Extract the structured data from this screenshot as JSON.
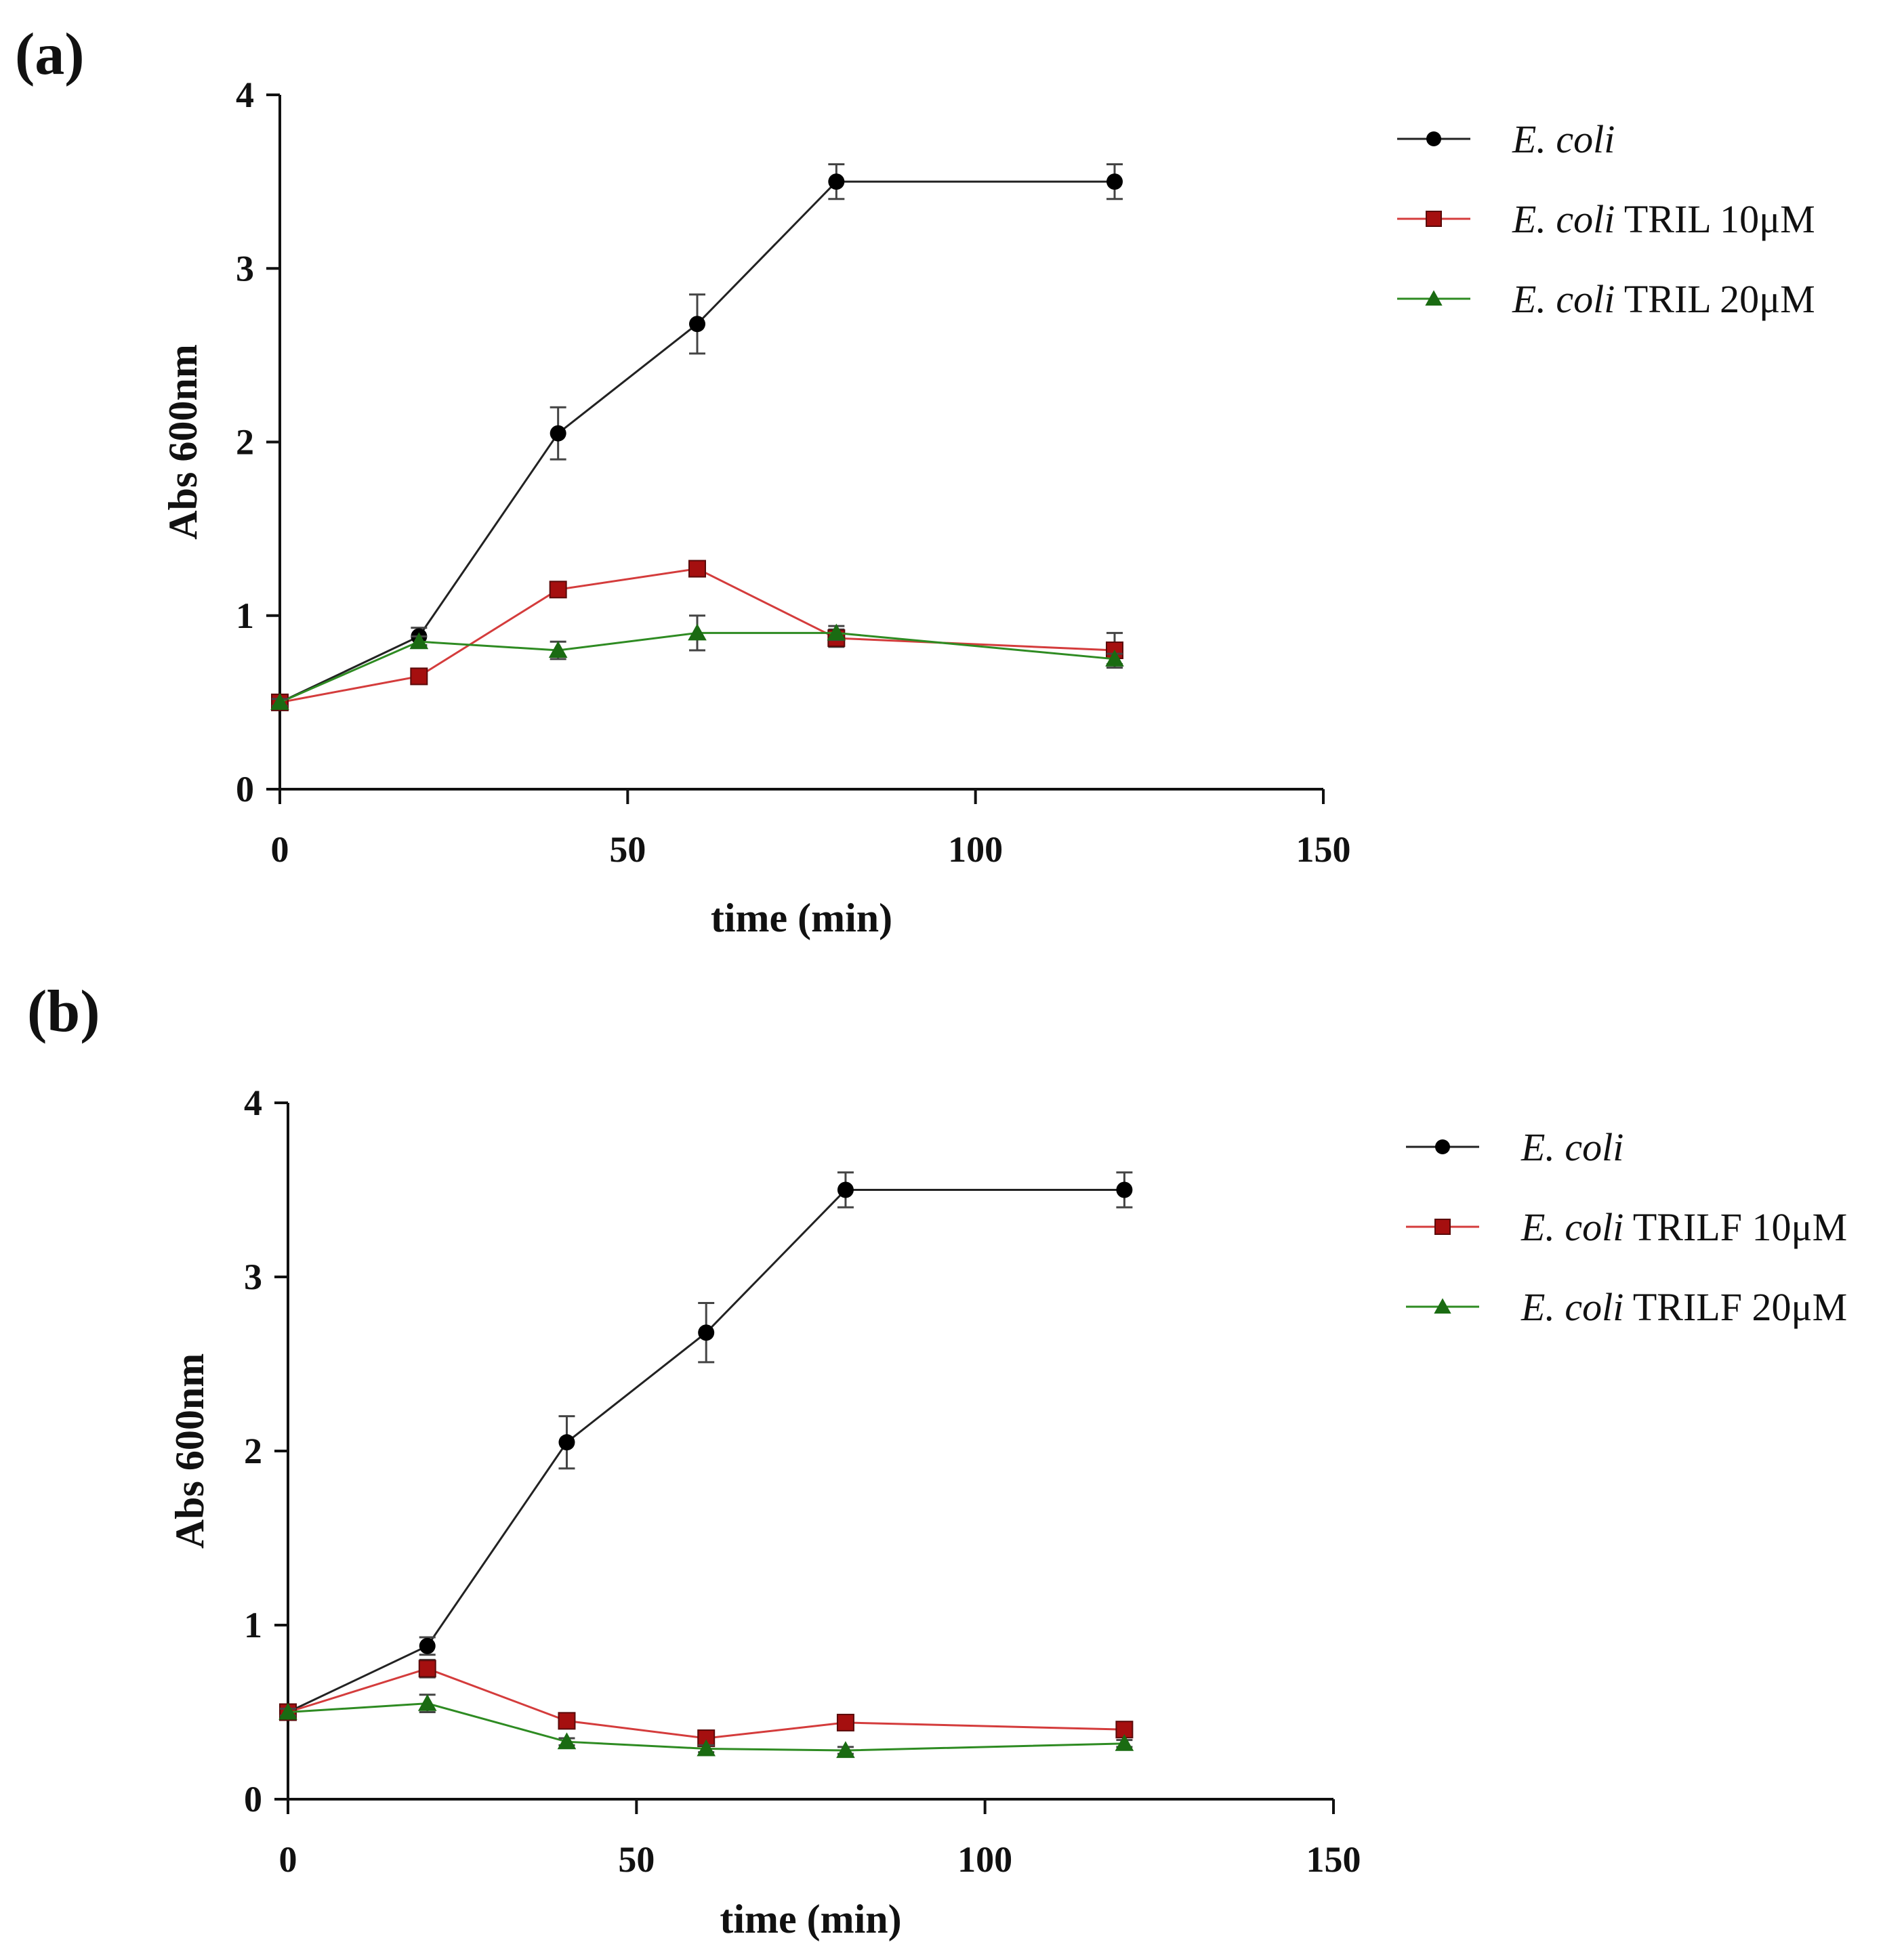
{
  "chart_data": [
    {
      "panel_label": "(a)",
      "type": "line",
      "xlabel": "time (min)",
      "ylabel": "Abs 600nm",
      "xlim": [
        0,
        150
      ],
      "ylim": [
        0,
        4
      ],
      "x_ticks": [
        "0",
        "50",
        "100",
        "150"
      ],
      "y_ticks": [
        "0",
        "1",
        "2",
        "3",
        "4"
      ],
      "legend_position": "top-right",
      "x": [
        0,
        20,
        40,
        60,
        80,
        120
      ],
      "series": [
        {
          "name": "E. coli",
          "name_italic": "E. coli",
          "name_rest": "",
          "color": "#000000",
          "marker": "circle",
          "values": [
            0.5,
            0.88,
            2.05,
            2.68,
            3.5,
            3.5
          ],
          "errors": [
            0.02,
            0.05,
            0.15,
            0.17,
            0.1,
            0.1
          ]
        },
        {
          "name": "E. coli TRIL 10μM",
          "name_italic": "E. coli",
          "name_rest": " TRIL 10μM",
          "color": "#a50f0f",
          "marker": "square",
          "values": [
            0.5,
            0.65,
            1.15,
            1.27,
            0.87,
            0.8
          ],
          "errors": [
            0.02,
            0.03,
            0.04,
            0.02,
            0.05,
            0.1
          ]
        },
        {
          "name": "E. coli TRIL 20μM",
          "name_italic": "E. coli",
          "name_rest": " TRIL 20μM",
          "color": "#1a6b12",
          "marker": "triangle",
          "values": [
            0.5,
            0.85,
            0.8,
            0.9,
            0.9,
            0.75
          ],
          "errors": [
            0.02,
            0.03,
            0.05,
            0.1,
            0.04,
            0.03
          ]
        }
      ]
    },
    {
      "panel_label": "(b)",
      "type": "line",
      "xlabel": "time (min)",
      "ylabel": "Abs 600nm",
      "xlim": [
        0,
        150
      ],
      "ylim": [
        0,
        4
      ],
      "x_ticks": [
        "0",
        "50",
        "100",
        "150"
      ],
      "y_ticks": [
        "0",
        "1",
        "2",
        "3",
        "4"
      ],
      "legend_position": "top-right",
      "x": [
        0,
        20,
        40,
        60,
        80,
        120
      ],
      "series": [
        {
          "name": "E. coli",
          "name_italic": "E. coli",
          "name_rest": "",
          "color": "#000000",
          "marker": "circle",
          "values": [
            0.5,
            0.88,
            2.05,
            2.68,
            3.5,
            3.5
          ],
          "errors": [
            0.02,
            0.05,
            0.15,
            0.17,
            0.1,
            0.1
          ]
        },
        {
          "name": "E. coli TRILF 10μM",
          "name_italic": "E. coli",
          "name_rest": " TRILF 10μM",
          "color": "#a50f0f",
          "marker": "square",
          "values": [
            0.5,
            0.75,
            0.45,
            0.35,
            0.44,
            0.4
          ],
          "errors": [
            0.02,
            0.05,
            0.04,
            0.03,
            0.02,
            0.02
          ]
        },
        {
          "name": "E. coli TRILF 20μM",
          "name_italic": "E. coli",
          "name_rest": " TRILF 20μM",
          "color": "#1a6b12",
          "marker": "triangle",
          "values": [
            0.5,
            0.55,
            0.33,
            0.29,
            0.28,
            0.32
          ],
          "errors": [
            0.02,
            0.05,
            0.02,
            0.02,
            0.02,
            0.02
          ]
        }
      ]
    }
  ]
}
